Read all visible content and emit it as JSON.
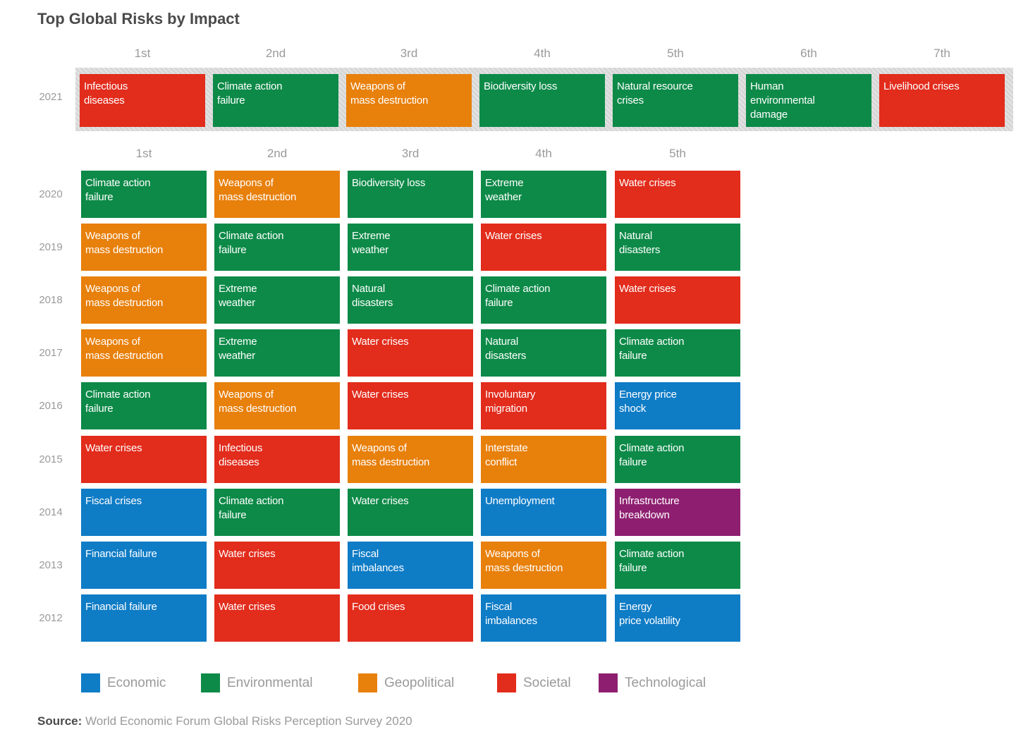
{
  "chart_data": {
    "type": "table",
    "title": "Top Global Risks by Impact",
    "colors": {
      "Economic": "#0f7cc6",
      "Environmental": "#0d8a48",
      "Geopolitical": "#e8800c",
      "Societal": "#e22c1c",
      "Technological": "#8e1f70"
    },
    "legend": [
      {
        "label": "Economic",
        "category": "Economic"
      },
      {
        "label": "Environmental",
        "category": "Environmental"
      },
      {
        "label": "Geopolitical",
        "category": "Geopolitical"
      },
      {
        "label": "Societal",
        "category": "Societal"
      },
      {
        "label": "Technological",
        "category": "Technological"
      }
    ],
    "top_ranks": [
      "1st",
      "2nd",
      "3rd",
      "4th",
      "5th",
      "6th",
      "7th"
    ],
    "top_row": {
      "year": "2021",
      "risks": [
        {
          "name": "Infectious\ndiseases",
          "category": "Societal"
        },
        {
          "name": "Climate action\nfailure",
          "category": "Environmental"
        },
        {
          "name": "Weapons of\nmass destruction",
          "category": "Geopolitical"
        },
        {
          "name": "Biodiversity loss",
          "category": "Environmental"
        },
        {
          "name": "Natural resource\ncrises",
          "category": "Environmental"
        },
        {
          "name": "Human\nenvironmental\ndamage",
          "category": "Environmental"
        },
        {
          "name": "Livelihood crises",
          "category": "Societal"
        }
      ]
    },
    "ranks": [
      "1st",
      "2nd",
      "3rd",
      "4th",
      "5th"
    ],
    "rows": [
      {
        "year": "2020",
        "risks": [
          {
            "name": "Climate action\nfailure",
            "category": "Environmental"
          },
          {
            "name": "Weapons of\nmass destruction",
            "category": "Geopolitical"
          },
          {
            "name": "Biodiversity loss",
            "category": "Environmental"
          },
          {
            "name": "Extreme\nweather",
            "category": "Environmental"
          },
          {
            "name": "Water crises",
            "category": "Societal"
          }
        ]
      },
      {
        "year": "2019",
        "risks": [
          {
            "name": "Weapons of\nmass destruction",
            "category": "Geopolitical"
          },
          {
            "name": "Climate action\nfailure",
            "category": "Environmental"
          },
          {
            "name": "Extreme\nweather",
            "category": "Environmental"
          },
          {
            "name": "Water crises",
            "category": "Societal"
          },
          {
            "name": "Natural\ndisasters",
            "category": "Environmental"
          }
        ]
      },
      {
        "year": "2018",
        "risks": [
          {
            "name": "Weapons of\nmass destruction",
            "category": "Geopolitical"
          },
          {
            "name": "Extreme\nweather",
            "category": "Environmental"
          },
          {
            "name": "Natural\ndisasters",
            "category": "Environmental"
          },
          {
            "name": "Climate action\nfailure",
            "category": "Environmental"
          },
          {
            "name": "Water crises",
            "category": "Societal"
          }
        ]
      },
      {
        "year": "2017",
        "risks": [
          {
            "name": "Weapons of\nmass destruction",
            "category": "Geopolitical"
          },
          {
            "name": "Extreme\nweather",
            "category": "Environmental"
          },
          {
            "name": "Water crises",
            "category": "Societal"
          },
          {
            "name": "Natural\ndisasters",
            "category": "Environmental"
          },
          {
            "name": "Climate action\nfailure",
            "category": "Environmental"
          }
        ]
      },
      {
        "year": "2016",
        "risks": [
          {
            "name": "Climate action\nfailure",
            "category": "Environmental"
          },
          {
            "name": "Weapons of\nmass destruction",
            "category": "Geopolitical"
          },
          {
            "name": "Water crises",
            "category": "Societal"
          },
          {
            "name": "Involuntary\nmigration",
            "category": "Societal"
          },
          {
            "name": "Energy price\nshock",
            "category": "Economic"
          }
        ]
      },
      {
        "year": "2015",
        "risks": [
          {
            "name": "Water crises",
            "category": "Societal"
          },
          {
            "name": "Infectious\ndiseases",
            "category": "Societal"
          },
          {
            "name": "Weapons of\nmass destruction",
            "category": "Geopolitical"
          },
          {
            "name": "Interstate\nconflict",
            "category": "Geopolitical"
          },
          {
            "name": "Climate action\nfailure",
            "category": "Environmental"
          }
        ]
      },
      {
        "year": "2014",
        "risks": [
          {
            "name": "Fiscal crises",
            "category": "Economic"
          },
          {
            "name": "Climate action\nfailure",
            "category": "Environmental"
          },
          {
            "name": "Water crises",
            "category": "Environmental"
          },
          {
            "name": "Unemployment",
            "category": "Economic"
          },
          {
            "name": "Infrastructure\nbreakdown",
            "category": "Technological"
          }
        ]
      },
      {
        "year": "2013",
        "risks": [
          {
            "name": "Financial failure",
            "category": "Economic"
          },
          {
            "name": "Water crises",
            "category": "Societal"
          },
          {
            "name": "Fiscal\nimbalances",
            "category": "Economic"
          },
          {
            "name": "Weapons of\nmass destruction",
            "category": "Geopolitical"
          },
          {
            "name": "Climate action\nfailure",
            "category": "Environmental"
          }
        ]
      },
      {
        "year": "2012",
        "risks": [
          {
            "name": "Financial failure",
            "category": "Economic"
          },
          {
            "name": "Water crises",
            "category": "Societal"
          },
          {
            "name": "Food crises",
            "category": "Societal"
          },
          {
            "name": "Fiscal\nimbalances",
            "category": "Economic"
          },
          {
            "name": "Energy\nprice volatility",
            "category": "Economic"
          }
        ]
      }
    ],
    "source_label": "Source:",
    "source_text": " World Economic Forum Global Risks Perception Survey 2020"
  }
}
